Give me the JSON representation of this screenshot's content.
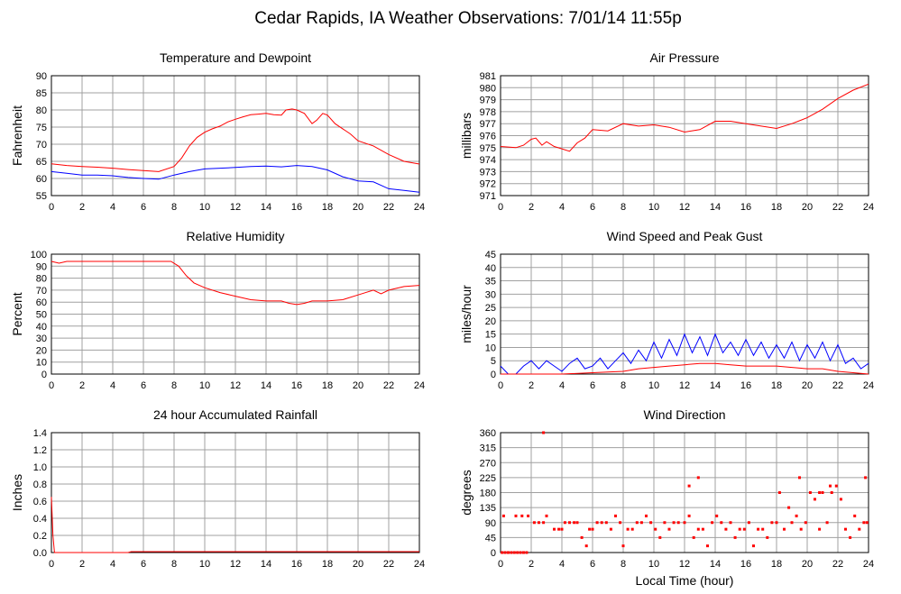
{
  "page": {
    "title": "Cedar Rapids, IA Weather Observations: 7/01/14 11:55p"
  },
  "colors": {
    "red": "#ff0000",
    "blue": "#0000ff",
    "grid": "#a0a0a0",
    "frame": "#000000"
  },
  "chart_data": [
    {
      "type": "line",
      "title": "Temperature and Dewpoint",
      "ylabel": "Fahrenheit",
      "xlabel": "",
      "xlim": [
        0,
        24
      ],
      "ylim": [
        55,
        90
      ],
      "xticks": [
        0,
        2,
        4,
        6,
        8,
        10,
        12,
        14,
        16,
        18,
        20,
        22,
        24
      ],
      "yticks": [
        55,
        60,
        65,
        70,
        75,
        80,
        85,
        90
      ],
      "grid": true,
      "series": [
        {
          "color": "#ff0000",
          "x": [
            0,
            1,
            2,
            3,
            4,
            5,
            6,
            7,
            8,
            8.5,
            9,
            9.5,
            10,
            10.5,
            11,
            11.5,
            12,
            12.5,
            13,
            13.5,
            14,
            14.5,
            15,
            15.3,
            15.7,
            16,
            16.5,
            17,
            17.3,
            17.7,
            18,
            18.5,
            19,
            19.5,
            20,
            21,
            22,
            23,
            24
          ],
          "y": [
            64.3,
            63.8,
            63.5,
            63.3,
            63,
            62.6,
            62.3,
            62,
            63.5,
            66,
            69.5,
            72,
            73.5,
            74.5,
            75.3,
            76.5,
            77.3,
            78,
            78.6,
            78.8,
            79,
            78.6,
            78.5,
            80,
            80.3,
            80,
            79,
            76,
            77,
            79,
            78.5,
            76,
            74.5,
            73,
            71,
            69.5,
            67,
            65,
            64.2
          ]
        },
        {
          "color": "#0000ff",
          "x": [
            0,
            1,
            2,
            3,
            4,
            5,
            6,
            7,
            8,
            9,
            10,
            11,
            12,
            13,
            14,
            15,
            16,
            17,
            18,
            19,
            20,
            21,
            22,
            23,
            24
          ],
          "y": [
            62,
            61.5,
            61,
            61,
            60.8,
            60.3,
            60,
            59.8,
            61,
            62,
            62.8,
            63,
            63.2,
            63.5,
            63.6,
            63.4,
            63.8,
            63.5,
            62.5,
            60.5,
            59.3,
            59,
            57,
            56.5,
            56
          ]
        }
      ]
    },
    {
      "type": "line",
      "title": "Air Pressure",
      "ylabel": "millibars",
      "xlabel": "",
      "xlim": [
        0,
        24
      ],
      "ylim": [
        971,
        981
      ],
      "xticks": [
        0,
        2,
        4,
        6,
        8,
        10,
        12,
        14,
        16,
        18,
        20,
        22,
        24
      ],
      "yticks": [
        971,
        972,
        973,
        974,
        975,
        976,
        977,
        978,
        979,
        980,
        981
      ],
      "grid": true,
      "series": [
        {
          "color": "#ff0000",
          "x": [
            0,
            1,
            1.5,
            2,
            2.3,
            2.7,
            3,
            3.5,
            4,
            4.5,
            5,
            5.5,
            6,
            7,
            8,
            9,
            10,
            11,
            12,
            13,
            14,
            15,
            16,
            17,
            18,
            19,
            20,
            21,
            22,
            23,
            24
          ],
          "y": [
            975.1,
            975,
            975.2,
            975.7,
            975.8,
            975.2,
            975.5,
            975.1,
            974.9,
            974.7,
            975.4,
            975.8,
            976.5,
            976.4,
            977,
            976.8,
            976.9,
            976.7,
            976.3,
            976.5,
            977.2,
            977.2,
            977,
            976.8,
            976.6,
            977,
            977.5,
            978.2,
            979.1,
            979.8,
            980.3
          ]
        }
      ]
    },
    {
      "type": "line",
      "title": "Relative Humidity",
      "ylabel": "Percent",
      "xlabel": "",
      "xlim": [
        0,
        24
      ],
      "ylim": [
        0,
        100
      ],
      "xticks": [
        0,
        2,
        4,
        6,
        8,
        10,
        12,
        14,
        16,
        18,
        20,
        22,
        24
      ],
      "yticks": [
        0,
        10,
        20,
        30,
        40,
        50,
        60,
        70,
        80,
        90,
        100
      ],
      "grid": true,
      "series": [
        {
          "color": "#ff0000",
          "x": [
            0,
            0.5,
            1,
            2,
            3,
            4,
            5,
            6,
            7,
            7.8,
            8.3,
            8.8,
            9.3,
            10,
            11,
            12,
            13,
            14,
            15,
            15.5,
            16,
            16.5,
            17,
            18,
            19,
            20,
            21,
            21.5,
            22,
            23,
            24
          ],
          "y": [
            94,
            92.5,
            94,
            94,
            94,
            94,
            94,
            94,
            94,
            94,
            90,
            82,
            76,
            72,
            68,
            65,
            62,
            61,
            61,
            59,
            58,
            59,
            61,
            61,
            62,
            66,
            70,
            67,
            70,
            73,
            74
          ]
        }
      ]
    },
    {
      "type": "line",
      "title": "Wind Speed and Peak Gust",
      "ylabel": "miles/hour",
      "xlabel": "",
      "xlim": [
        0,
        24
      ],
      "ylim": [
        0,
        45
      ],
      "xticks": [
        0,
        2,
        4,
        6,
        8,
        10,
        12,
        14,
        16,
        18,
        20,
        22,
        24
      ],
      "yticks": [
        0,
        5,
        10,
        15,
        20,
        25,
        30,
        35,
        40,
        45
      ],
      "grid": true,
      "series": [
        {
          "color": "#0000ff",
          "x": [
            0,
            0.5,
            1,
            1.5,
            2,
            2.5,
            3,
            3.5,
            4,
            4.5,
            5,
            5.5,
            6,
            6.5,
            7,
            7.5,
            8,
            8.5,
            9,
            9.5,
            10,
            10.5,
            11,
            11.5,
            12,
            12.5,
            13,
            13.5,
            14,
            14.5,
            15,
            15.5,
            16,
            16.5,
            17,
            17.5,
            18,
            18.5,
            19,
            19.5,
            20,
            20.5,
            21,
            21.5,
            22,
            22.5,
            23,
            23.5,
            24
          ],
          "y": [
            3,
            0,
            0,
            3,
            5,
            2,
            5,
            3,
            1,
            4,
            6,
            2,
            3,
            6,
            2,
            5,
            8,
            4,
            9,
            5,
            12,
            6,
            13,
            7,
            15,
            8,
            14,
            7,
            15,
            8,
            12,
            7,
            13,
            7,
            12,
            6,
            11,
            6,
            12,
            5,
            11,
            6,
            12,
            5,
            11,
            4,
            6,
            2,
            4
          ]
        },
        {
          "color": "#ff0000",
          "x": [
            0,
            2,
            4,
            6,
            8,
            9,
            10,
            11,
            12,
            13,
            14,
            15,
            16,
            17,
            18,
            19,
            20,
            21,
            22,
            23,
            24
          ],
          "y": [
            0,
            0,
            0,
            0.5,
            1,
            2,
            2.5,
            3,
            3.5,
            4,
            4,
            3.5,
            3,
            3,
            3,
            2.5,
            2,
            2,
            1,
            0.5,
            0
          ]
        }
      ]
    },
    {
      "type": "line",
      "title": "24 hour Accumulated Rainfall",
      "ylabel": "Inches",
      "xlabel": "",
      "xlim": [
        0,
        24
      ],
      "ylim": [
        0,
        1.4
      ],
      "xticks": [
        0,
        2,
        4,
        6,
        8,
        10,
        12,
        14,
        16,
        18,
        20,
        22,
        24
      ],
      "yticks": [
        0.0,
        0.2,
        0.4,
        0.6,
        0.8,
        1.0,
        1.2,
        1.4
      ],
      "ytick_labels": [
        "0.0",
        "0.2",
        "0.4",
        "0.6",
        "0.8",
        "1.0",
        "1.2",
        "1.4"
      ],
      "grid": true,
      "series": [
        {
          "color": "#ff0000",
          "x": [
            0,
            0.1,
            0.2,
            1,
            3,
            5,
            5.2,
            24
          ],
          "y": [
            0.65,
            0.2,
            0,
            0,
            0,
            0,
            0.01,
            0.01
          ]
        }
      ]
    },
    {
      "type": "scatter",
      "title": "Wind Direction",
      "ylabel": "degrees",
      "xlabel": "Local Time (hour)",
      "xlim": [
        0,
        24
      ],
      "ylim": [
        0,
        360
      ],
      "xticks": [
        0,
        2,
        4,
        6,
        8,
        10,
        12,
        14,
        16,
        18,
        20,
        22,
        24
      ],
      "yticks": [
        0,
        45,
        90,
        135,
        180,
        225,
        270,
        315,
        360
      ],
      "grid": true,
      "series": [
        {
          "color": "#ff0000",
          "x": [
            0.1,
            0.3,
            0.5,
            0.7,
            0.9,
            1.1,
            1.3,
            1.5,
            1.7,
            0.2,
            1.0,
            1.4,
            1.8,
            2.2,
            2.5,
            2.8,
            3.0,
            3.5,
            3.8,
            4.0,
            4.2,
            4.5,
            4.8,
            5.0,
            5.3,
            5.6,
            5.8,
            6.0,
            6.3,
            6.6,
            6.9,
            7.2,
            7.5,
            7.8,
            8.0,
            8.3,
            8.6,
            8.9,
            9.2,
            9.5,
            9.8,
            10.1,
            10.4,
            10.7,
            11.0,
            11.3,
            11.6,
            12.0,
            12.3,
            12.6,
            12.9,
            13.2,
            13.5,
            13.8,
            14.1,
            14.4,
            14.7,
            15.0,
            15.3,
            15.6,
            15.9,
            16.2,
            16.5,
            16.8,
            17.1,
            17.4,
            17.7,
            18.0,
            18.2,
            18.5,
            18.8,
            19.0,
            19.3,
            19.6,
            19.9,
            20.2,
            20.5,
            20.8,
            21.0,
            21.3,
            21.6,
            21.9,
            22.2,
            22.5,
            22.8,
            23.1,
            23.4,
            23.7,
            23.9,
            2.8,
            12.3,
            12.9,
            19.5,
            20.8,
            21.5,
            23.8
          ],
          "y": [
            0,
            0,
            0,
            0,
            0,
            0,
            0,
            0,
            0,
            110,
            110,
            110,
            110,
            90,
            90,
            90,
            110,
            70,
            70,
            70,
            90,
            90,
            90,
            90,
            45,
            20,
            70,
            70,
            90,
            90,
            90,
            70,
            110,
            90,
            20,
            70,
            70,
            90,
            90,
            110,
            90,
            70,
            45,
            90,
            70,
            90,
            90,
            90,
            110,
            45,
            70,
            70,
            20,
            90,
            110,
            90,
            70,
            90,
            45,
            70,
            70,
            90,
            20,
            70,
            70,
            45,
            90,
            90,
            180,
            70,
            135,
            90,
            110,
            70,
            90,
            180,
            160,
            70,
            180,
            90,
            180,
            200,
            160,
            70,
            45,
            110,
            70,
            90,
            90,
            360,
            200,
            225,
            225,
            180,
            200,
            225
          ]
        }
      ]
    }
  ]
}
